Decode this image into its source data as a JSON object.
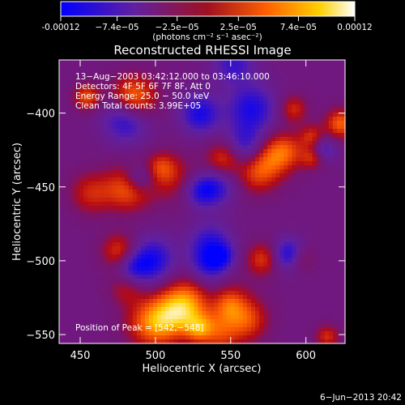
{
  "colorbar": {
    "tick_labels": [
      "-0.00012",
      "−7.4e−05",
      "−2.5e−05",
      "2.5e−05",
      "7.4e−05",
      "0.00012"
    ],
    "tick_values": [
      -0.00012,
      -7.4e-05,
      -2.5e-05,
      2.5e-05,
      7.4e-05,
      0.00012
    ],
    "range": [
      -0.00012,
      0.00012
    ],
    "unit_label": "(photons cm⁻² s⁻¹ asec⁻²)",
    "colors": [
      "#0000ff",
      "#6020a0",
      "#c01010",
      "#ff6000",
      "#ffd000",
      "#ffffff"
    ]
  },
  "chart_data": {
    "type": "heatmap",
    "title": "Reconstructed RHESSI Image",
    "xlabel": "Heliocentric X (arcsec)",
    "ylabel": "Heliocentric Y (arcsec)",
    "xlim": [
      436,
      626
    ],
    "ylim": [
      -556,
      -364
    ],
    "xticks": [
      450,
      500,
      550,
      600
    ],
    "yticks": [
      -400,
      -450,
      -500,
      -550
    ],
    "xtick_labels": [
      "450",
      "500",
      "550",
      "600"
    ],
    "ytick_labels": [
      "−400",
      "−450",
      "−500",
      "−550"
    ],
    "annotations": [
      "13−Aug−2003 03:42:12.000 to 03:46:10.000",
      "Detectors: 4F 5F 6F 7F 8F, Att 0",
      "Energy Range: 25.0 − 50.0 keV",
      "Clean     Total counts: 3.99E+05"
    ],
    "peak_label": "Position of Peak = [542,−548]",
    "peak": [
      542,
      -548
    ]
  },
  "footer": {
    "date": "6−Jun−2013 20:42"
  }
}
